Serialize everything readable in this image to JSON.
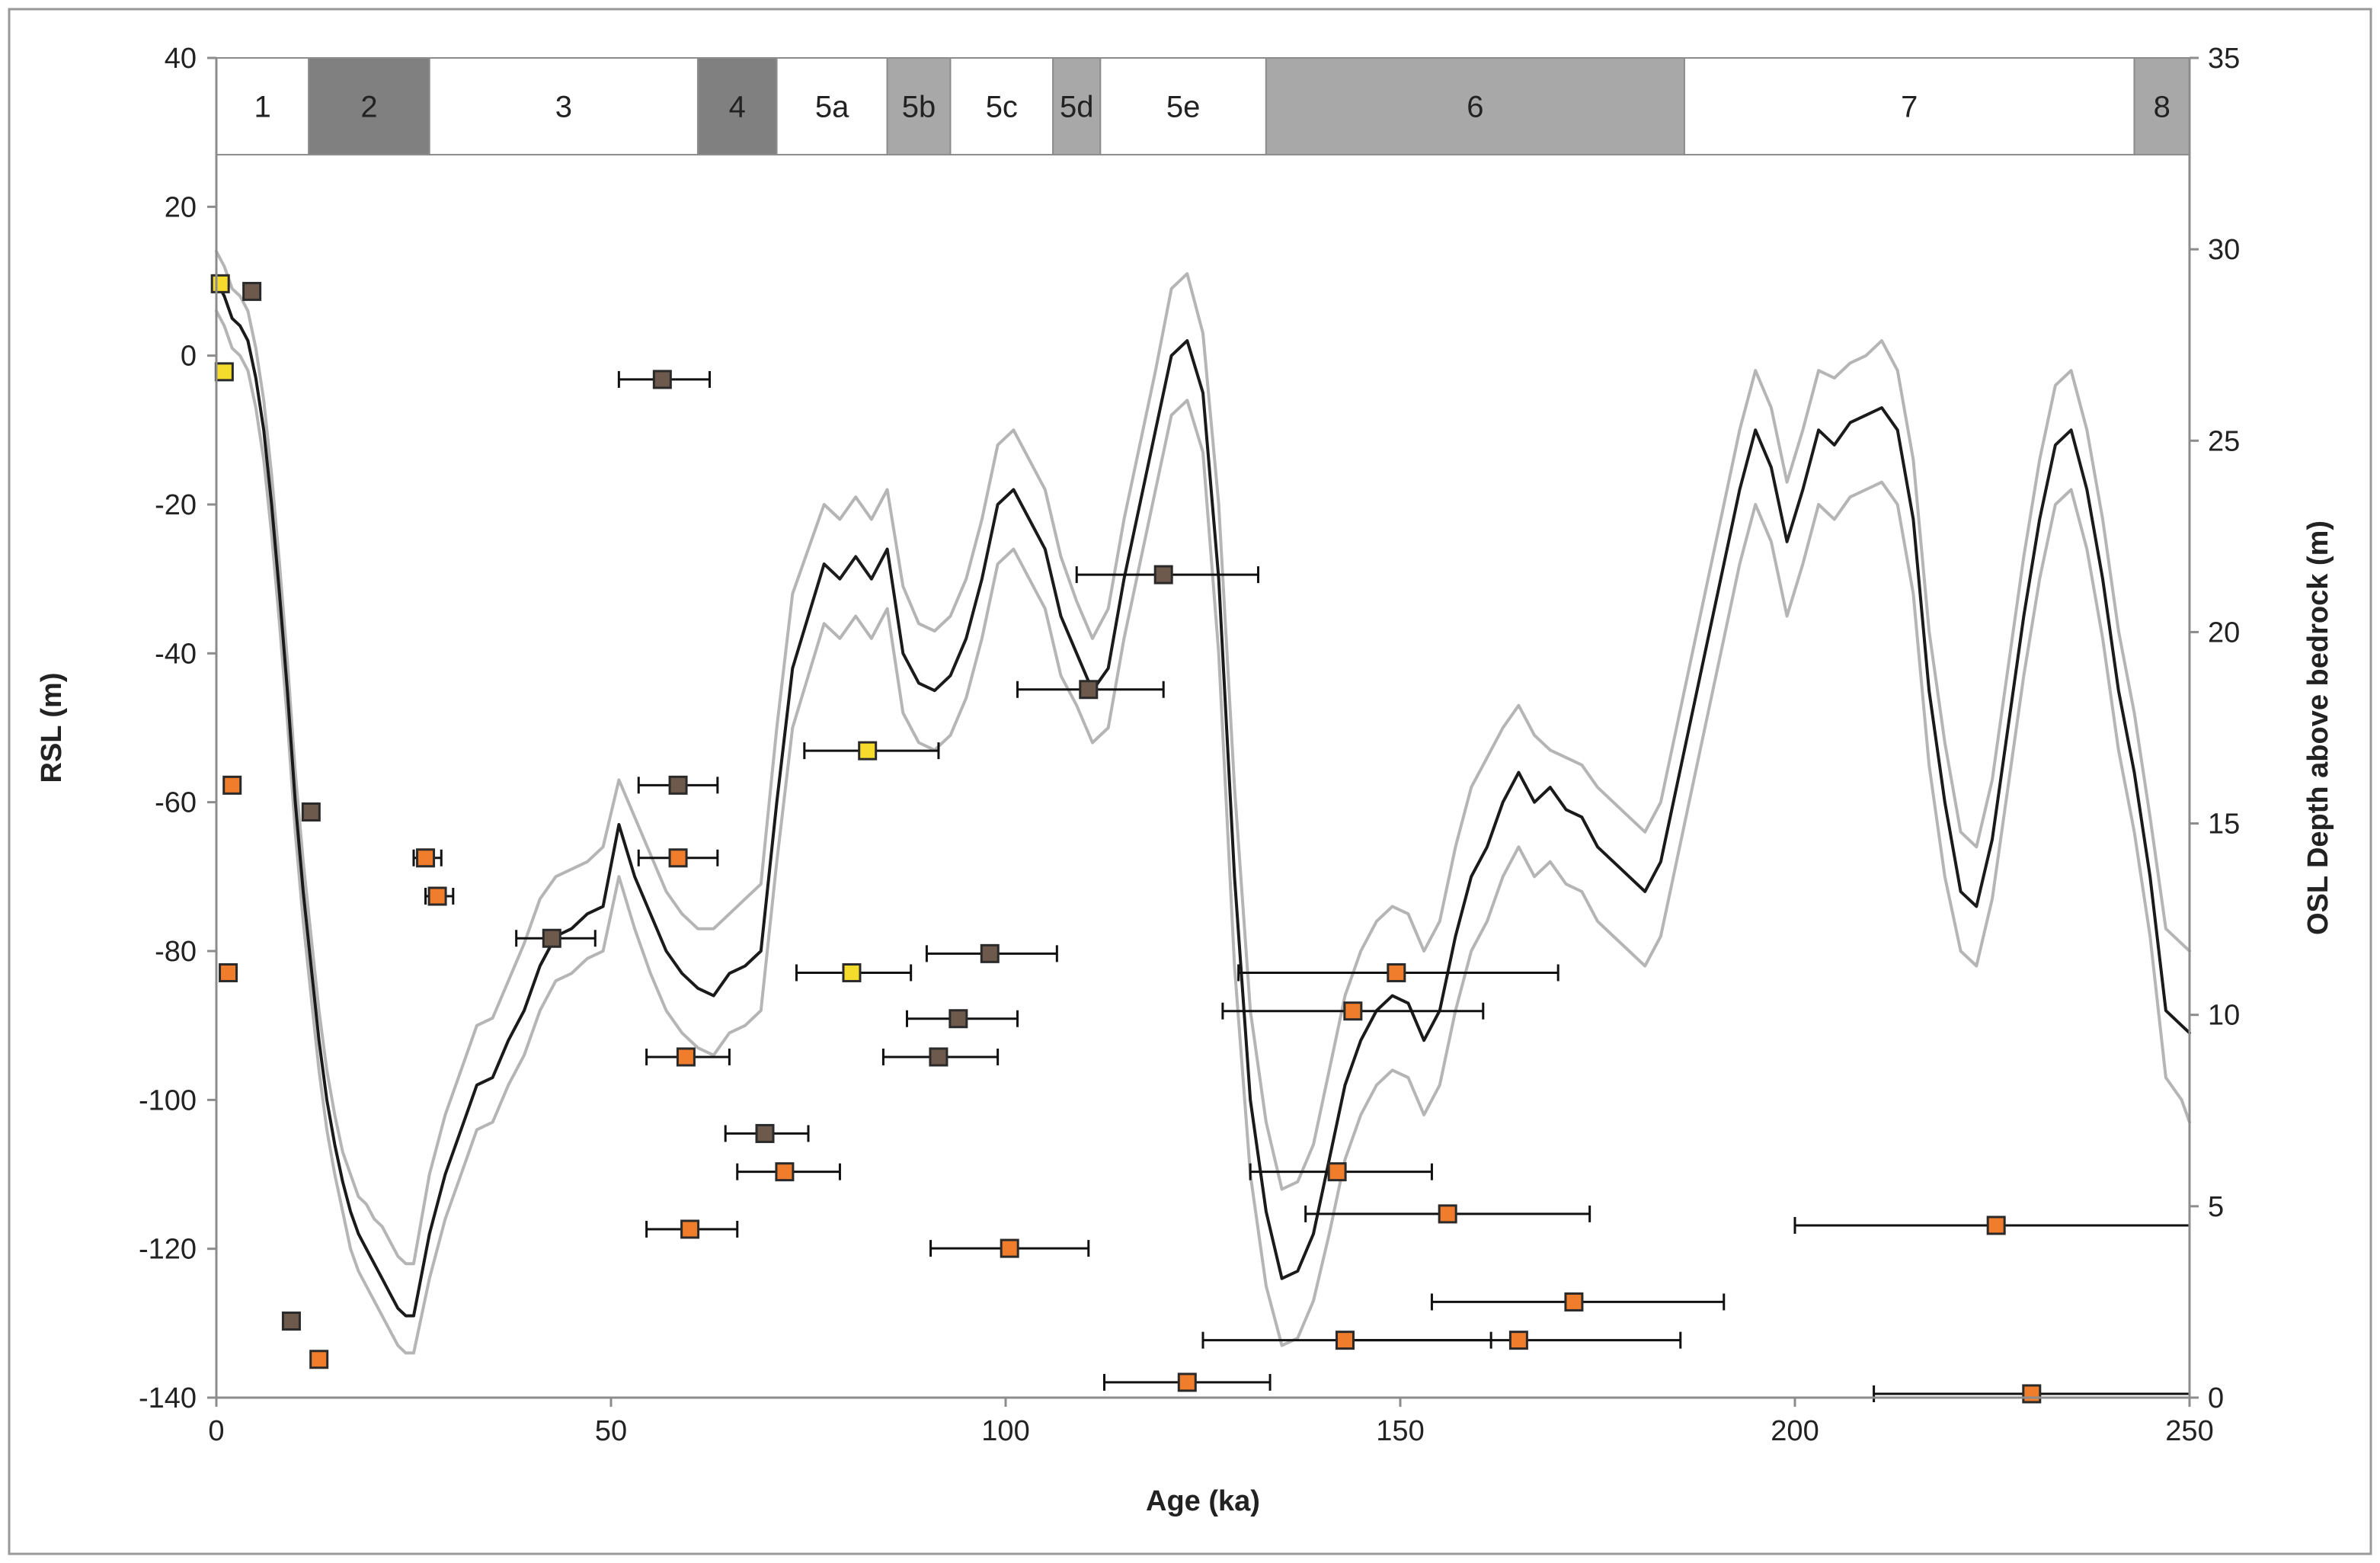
{
  "chart_data": {
    "type": "line",
    "xlabel": "Age (ka)",
    "ylabel": "RSL (m)",
    "y2label": "OSL Depth  above bedrock (m)",
    "xlim": [
      0,
      250
    ],
    "ylim": [
      -140,
      40
    ],
    "y2lim": [
      0,
      35
    ],
    "xticks": [
      0,
      50,
      100,
      150,
      200,
      250
    ],
    "yticks": [
      -140,
      -120,
      -100,
      -80,
      -60,
      -40,
      -20,
      0,
      20,
      40
    ],
    "y2ticks": [
      0,
      5,
      10,
      15,
      20,
      25,
      30,
      35
    ],
    "grid": false,
    "colors": {
      "curve": "#1a1a1a",
      "envelope": "#b5b5b5",
      "stage_dark": "#808080",
      "stage_mid": "#a8a8a8",
      "stage_light": "#ffffff",
      "marker_yellow": "#f5dc2c",
      "marker_brown": "#6e5a4c",
      "marker_orange": "#ef7d2b",
      "errorbar": "#111111"
    },
    "marine_isotope_stages": [
      {
        "label": "1",
        "start": 0,
        "end": 11.7,
        "shade": "light"
      },
      {
        "label": "2",
        "start": 11.7,
        "end": 27,
        "shade": "dark"
      },
      {
        "label": "3",
        "start": 27,
        "end": 61,
        "shade": "light"
      },
      {
        "label": "4",
        "start": 61,
        "end": 71,
        "shade": "dark"
      },
      {
        "label": "5a",
        "start": 71,
        "end": 85,
        "shade": "light"
      },
      {
        "label": "5b",
        "start": 85,
        "end": 93,
        "shade": "mid"
      },
      {
        "label": "5c",
        "start": 93,
        "end": 106,
        "shade": "light"
      },
      {
        "label": "5d",
        "start": 106,
        "end": 112,
        "shade": "mid"
      },
      {
        "label": "5e",
        "start": 112,
        "end": 133,
        "shade": "light"
      },
      {
        "label": "6",
        "start": 133,
        "end": 186,
        "shade": "mid"
      },
      {
        "label": "7",
        "start": 186,
        "end": 243,
        "shade": "light"
      },
      {
        "label": "8",
        "start": 243,
        "end": 250,
        "shade": "mid"
      }
    ],
    "series": [
      {
        "name": "RSL",
        "role": "curve",
        "x": [
          0,
          1,
          2,
          3,
          4,
          5,
          6,
          7,
          8,
          9,
          10,
          11,
          12,
          13,
          14,
          15,
          16,
          17,
          18,
          19,
          20,
          21,
          22,
          23,
          24,
          25,
          27,
          29,
          31,
          33,
          35,
          37,
          39,
          41,
          43,
          45,
          47,
          49,
          51,
          53,
          55,
          57,
          59,
          61,
          63,
          65,
          67,
          69,
          71,
          73,
          75,
          77,
          79,
          81,
          83,
          85,
          87,
          89,
          91,
          93,
          95,
          97,
          99,
          101,
          103,
          105,
          107,
          109,
          111,
          113,
          115,
          117,
          119,
          121,
          123,
          125,
          127,
          129,
          131,
          133,
          135,
          137,
          139,
          141,
          143,
          145,
          147,
          149,
          151,
          153,
          155,
          157,
          159,
          161,
          163,
          165,
          167,
          169,
          171,
          173,
          175,
          177,
          179,
          181,
          183,
          185,
          187,
          189,
          191,
          193,
          195,
          197,
          199,
          201,
          203,
          205,
          207,
          209,
          211,
          213,
          215,
          217,
          219,
          221,
          223,
          225,
          227,
          229,
          231,
          233,
          235,
          237,
          239,
          241,
          243,
          245,
          247,
          249,
          250
        ],
        "y": [
          10,
          8,
          5,
          4,
          2,
          -3,
          -10,
          -20,
          -32,
          -45,
          -60,
          -72,
          -82,
          -92,
          -100,
          -106,
          -111,
          -115,
          -118,
          -120,
          -122,
          -124,
          -126,
          -128,
          -129,
          -129,
          -118,
          -110,
          -104,
          -98,
          -97,
          -92,
          -88,
          -82,
          -78,
          -77,
          -75,
          -74,
          -63,
          -70,
          -75,
          -80,
          -83,
          -85,
          -86,
          -83,
          -82,
          -80,
          -60,
          -42,
          -35,
          -28,
          -30,
          -27,
          -30,
          -26,
          -40,
          -44,
          -45,
          -43,
          -38,
          -30,
          -20,
          -18,
          -22,
          -26,
          -35,
          -40,
          -45,
          -42,
          -30,
          -20,
          -10,
          0,
          2,
          -5,
          -30,
          -70,
          -100,
          -115,
          -124,
          -123,
          -118,
          -108,
          -98,
          -92,
          -88,
          -86,
          -87,
          -92,
          -88,
          -78,
          -70,
          -66,
          -60,
          -56,
          -60,
          -58,
          -61,
          -62,
          -66,
          -68,
          -70,
          -72,
          -68,
          -58,
          -48,
          -38,
          -28,
          -18,
          -10,
          -15,
          -25,
          -18,
          -10,
          -12,
          -9,
          -8,
          -7,
          -10,
          -22,
          -45,
          -60,
          -72,
          -74,
          -65,
          -50,
          -35,
          -22,
          -12,
          -10,
          -18,
          -30,
          -45,
          -56,
          -70,
          -88,
          -90,
          -91
        ]
      },
      {
        "name": "RSL upper",
        "role": "envelope",
        "x": [
          0,
          1,
          2,
          3,
          4,
          5,
          6,
          7,
          8,
          9,
          10,
          11,
          12,
          13,
          14,
          15,
          16,
          17,
          18,
          19,
          20,
          21,
          22,
          23,
          24,
          25,
          27,
          29,
          31,
          33,
          35,
          37,
          39,
          41,
          43,
          45,
          47,
          49,
          51,
          53,
          55,
          57,
          59,
          61,
          63,
          65,
          67,
          69,
          71,
          73,
          75,
          77,
          79,
          81,
          83,
          85,
          87,
          89,
          91,
          93,
          95,
          97,
          99,
          101,
          103,
          105,
          107,
          109,
          111,
          113,
          115,
          117,
          119,
          121,
          123,
          125,
          127,
          129,
          131,
          133,
          135,
          137,
          139,
          141,
          143,
          145,
          147,
          149,
          151,
          153,
          155,
          157,
          159,
          161,
          163,
          165,
          167,
          169,
          171,
          173,
          175,
          177,
          179,
          181,
          183,
          185,
          187,
          189,
          191,
          193,
          195,
          197,
          199,
          201,
          203,
          205,
          207,
          209,
          211,
          213,
          215,
          217,
          219,
          221,
          223,
          225,
          227,
          229,
          231,
          233,
          235,
          237,
          239,
          241,
          243,
          245,
          247,
          249,
          250
        ],
        "y": [
          14,
          12,
          9,
          8,
          6,
          1,
          -6,
          -16,
          -28,
          -41,
          -56,
          -68,
          -78,
          -88,
          -96,
          -102,
          -107,
          -110,
          -113,
          -114,
          -116,
          -117,
          -119,
          -121,
          -122,
          -122,
          -110,
          -102,
          -96,
          -90,
          -89,
          -84,
          -79,
          -73,
          -70,
          -69,
          -68,
          -66,
          -57,
          -62,
          -67,
          -72,
          -75,
          -77,
          -77,
          -75,
          -73,
          -71,
          -50,
          -32,
          -26,
          -20,
          -22,
          -19,
          -22,
          -18,
          -31,
          -36,
          -37,
          -35,
          -30,
          -22,
          -12,
          -10,
          -14,
          -18,
          -27,
          -33,
          -38,
          -34,
          -22,
          -12,
          -2,
          9,
          11,
          3,
          -20,
          -58,
          -88,
          -103,
          -112,
          -111,
          -106,
          -96,
          -86,
          -80,
          -76,
          -74,
          -75,
          -80,
          -76,
          -66,
          -58,
          -54,
          -50,
          -47,
          -51,
          -53,
          -54,
          -55,
          -58,
          -60,
          -62,
          -64,
          -60,
          -50,
          -40,
          -30,
          -20,
          -10,
          -2,
          -7,
          -17,
          -10,
          -2,
          -3,
          -1,
          0,
          2,
          -2,
          -14,
          -37,
          -52,
          -64,
          -66,
          -57,
          -42,
          -27,
          -14,
          -4,
          -2,
          -10,
          -22,
          -37,
          -48,
          -62,
          -77,
          -79,
          -80
        ]
      },
      {
        "name": "RSL lower",
        "role": "envelope",
        "x": [
          0,
          1,
          2,
          3,
          4,
          5,
          6,
          7,
          8,
          9,
          10,
          11,
          12,
          13,
          14,
          15,
          16,
          17,
          18,
          19,
          20,
          21,
          22,
          23,
          24,
          25,
          27,
          29,
          31,
          33,
          35,
          37,
          39,
          41,
          43,
          45,
          47,
          49,
          51,
          53,
          55,
          57,
          59,
          61,
          63,
          65,
          67,
          69,
          71,
          73,
          75,
          77,
          79,
          81,
          83,
          85,
          87,
          89,
          91,
          93,
          95,
          97,
          99,
          101,
          103,
          105,
          107,
          109,
          111,
          113,
          115,
          117,
          119,
          121,
          123,
          125,
          127,
          129,
          131,
          133,
          135,
          137,
          139,
          141,
          143,
          145,
          147,
          149,
          151,
          153,
          155,
          157,
          159,
          161,
          163,
          165,
          167,
          169,
          171,
          173,
          175,
          177,
          179,
          181,
          183,
          185,
          187,
          189,
          191,
          193,
          195,
          197,
          199,
          201,
          203,
          205,
          207,
          209,
          211,
          213,
          215,
          217,
          219,
          221,
          223,
          225,
          227,
          229,
          231,
          233,
          235,
          237,
          239,
          241,
          243,
          245,
          247,
          249,
          250
        ],
        "y": [
          6,
          4,
          1,
          0,
          -2,
          -7,
          -14,
          -24,
          -36,
          -49,
          -64,
          -76,
          -86,
          -96,
          -104,
          -110,
          -115,
          -120,
          -123,
          -125,
          -127,
          -129,
          -131,
          -133,
          -134,
          -134,
          -124,
          -116,
          -110,
          -104,
          -103,
          -98,
          -94,
          -88,
          -84,
          -83,
          -81,
          -80,
          -70,
          -77,
          -83,
          -88,
          -91,
          -93,
          -94,
          -91,
          -90,
          -88,
          -68,
          -50,
          -43,
          -36,
          -38,
          -35,
          -38,
          -34,
          -48,
          -52,
          -53,
          -51,
          -46,
          -38,
          -28,
          -26,
          -30,
          -34,
          -43,
          -47,
          -52,
          -50,
          -38,
          -28,
          -18,
          -8,
          -6,
          -13,
          -40,
          -82,
          -110,
          -125,
          -133,
          -132,
          -127,
          -118,
          -108,
          -102,
          -98,
          -96,
          -97,
          -102,
          -98,
          -88,
          -80,
          -76,
          -70,
          -66,
          -70,
          -68,
          -71,
          -72,
          -76,
          -78,
          -80,
          -82,
          -78,
          -68,
          -58,
          -48,
          -38,
          -28,
          -20,
          -25,
          -35,
          -28,
          -20,
          -22,
          -19,
          -18,
          -17,
          -20,
          -32,
          -55,
          -70,
          -80,
          -82,
          -73,
          -58,
          -43,
          -30,
          -20,
          -18,
          -26,
          -38,
          -53,
          -64,
          -78,
          -97,
          -100,
          -103
        ]
      }
    ],
    "points": [
      {
        "x": 0.5,
        "y": 29.1,
        "color": "yellow"
      },
      {
        "x": 1,
        "y": 26.8,
        "color": "yellow"
      },
      {
        "x": 4.5,
        "y": 28.9,
        "color": "brown"
      },
      {
        "x": 2,
        "y": 16.0,
        "color": "orange"
      },
      {
        "x": 1.5,
        "y": 11.1,
        "color": "orange"
      },
      {
        "x": 12,
        "y": 15.3,
        "color": "brown"
      },
      {
        "x": 9.5,
        "y": 2.0,
        "color": "brown"
      },
      {
        "x": 13,
        "y": 1.0,
        "color": "orange"
      },
      {
        "x": 26.5,
        "y": 14.1,
        "color": "orange",
        "xerr": [
          25,
          28.5
        ]
      },
      {
        "x": 28,
        "y": 13.1,
        "color": "orange",
        "xerr": [
          26.5,
          30
        ]
      },
      {
        "x": 42.5,
        "y": 12.0,
        "color": "brown",
        "xerr": [
          38,
          48
        ]
      },
      {
        "x": 56.5,
        "y": 26.6,
        "color": "brown",
        "xerr": [
          51,
          62.5
        ]
      },
      {
        "x": 58.5,
        "y": 16.0,
        "color": "brown",
        "xerr": [
          53.5,
          63.5
        ]
      },
      {
        "x": 58.5,
        "y": 14.1,
        "color": "orange",
        "xerr": [
          53.5,
          63.5
        ]
      },
      {
        "x": 59.5,
        "y": 8.9,
        "color": "orange",
        "xerr": [
          54.5,
          65
        ]
      },
      {
        "x": 60,
        "y": 4.4,
        "color": "orange",
        "xerr": [
          54.5,
          66
        ]
      },
      {
        "x": 69.5,
        "y": 6.9,
        "color": "brown",
        "xerr": [
          64.5,
          75
        ]
      },
      {
        "x": 72,
        "y": 5.9,
        "color": "orange",
        "xerr": [
          66,
          79
        ]
      },
      {
        "x": 80.5,
        "y": 11.1,
        "color": "yellow",
        "xerr": [
          73.5,
          88
        ]
      },
      {
        "x": 82.5,
        "y": 16.9,
        "color": "yellow",
        "xerr": [
          74.5,
          91.5
        ]
      },
      {
        "x": 91.5,
        "y": 8.9,
        "color": "brown",
        "xerr": [
          84.5,
          99
        ]
      },
      {
        "x": 94,
        "y": 9.9,
        "color": "brown",
        "xerr": [
          87.5,
          101.5
        ]
      },
      {
        "x": 98,
        "y": 11.6,
        "color": "brown",
        "xerr": [
          90,
          106.5
        ]
      },
      {
        "x": 100.5,
        "y": 3.9,
        "color": "orange",
        "xerr": [
          90.5,
          110.5
        ]
      },
      {
        "x": 110.5,
        "y": 18.5,
        "color": "brown",
        "xerr": [
          101.5,
          120
        ]
      },
      {
        "x": 120,
        "y": 21.5,
        "color": "brown",
        "xerr": [
          109,
          132
        ]
      },
      {
        "x": 123,
        "y": 0.4,
        "color": "orange",
        "xerr": [
          112.5,
          133.5
        ]
      },
      {
        "x": 142,
        "y": 5.9,
        "color": "orange",
        "xerr": [
          131,
          154
        ]
      },
      {
        "x": 143,
        "y": 1.5,
        "color": "orange",
        "xerr": [
          125,
          161.5
        ]
      },
      {
        "x": 144,
        "y": 10.1,
        "color": "orange",
        "xerr": [
          127.5,
          160.5
        ]
      },
      {
        "x": 149.5,
        "y": 11.1,
        "color": "orange",
        "xerr": [
          129.5,
          170
        ]
      },
      {
        "x": 156,
        "y": 4.8,
        "color": "orange",
        "xerr": [
          138,
          174
        ]
      },
      {
        "x": 165,
        "y": 1.5,
        "color": "orange",
        "xerr": [
          143,
          185.5
        ]
      },
      {
        "x": 172,
        "y": 2.5,
        "color": "orange",
        "xerr": [
          154,
          191
        ]
      },
      {
        "x": 225.5,
        "y": 4.5,
        "color": "orange",
        "xerr": [
          200,
          250
        ]
      },
      {
        "x": 230,
        "y": 0.1,
        "color": "orange",
        "xerr": [
          210,
          250
        ]
      }
    ]
  }
}
